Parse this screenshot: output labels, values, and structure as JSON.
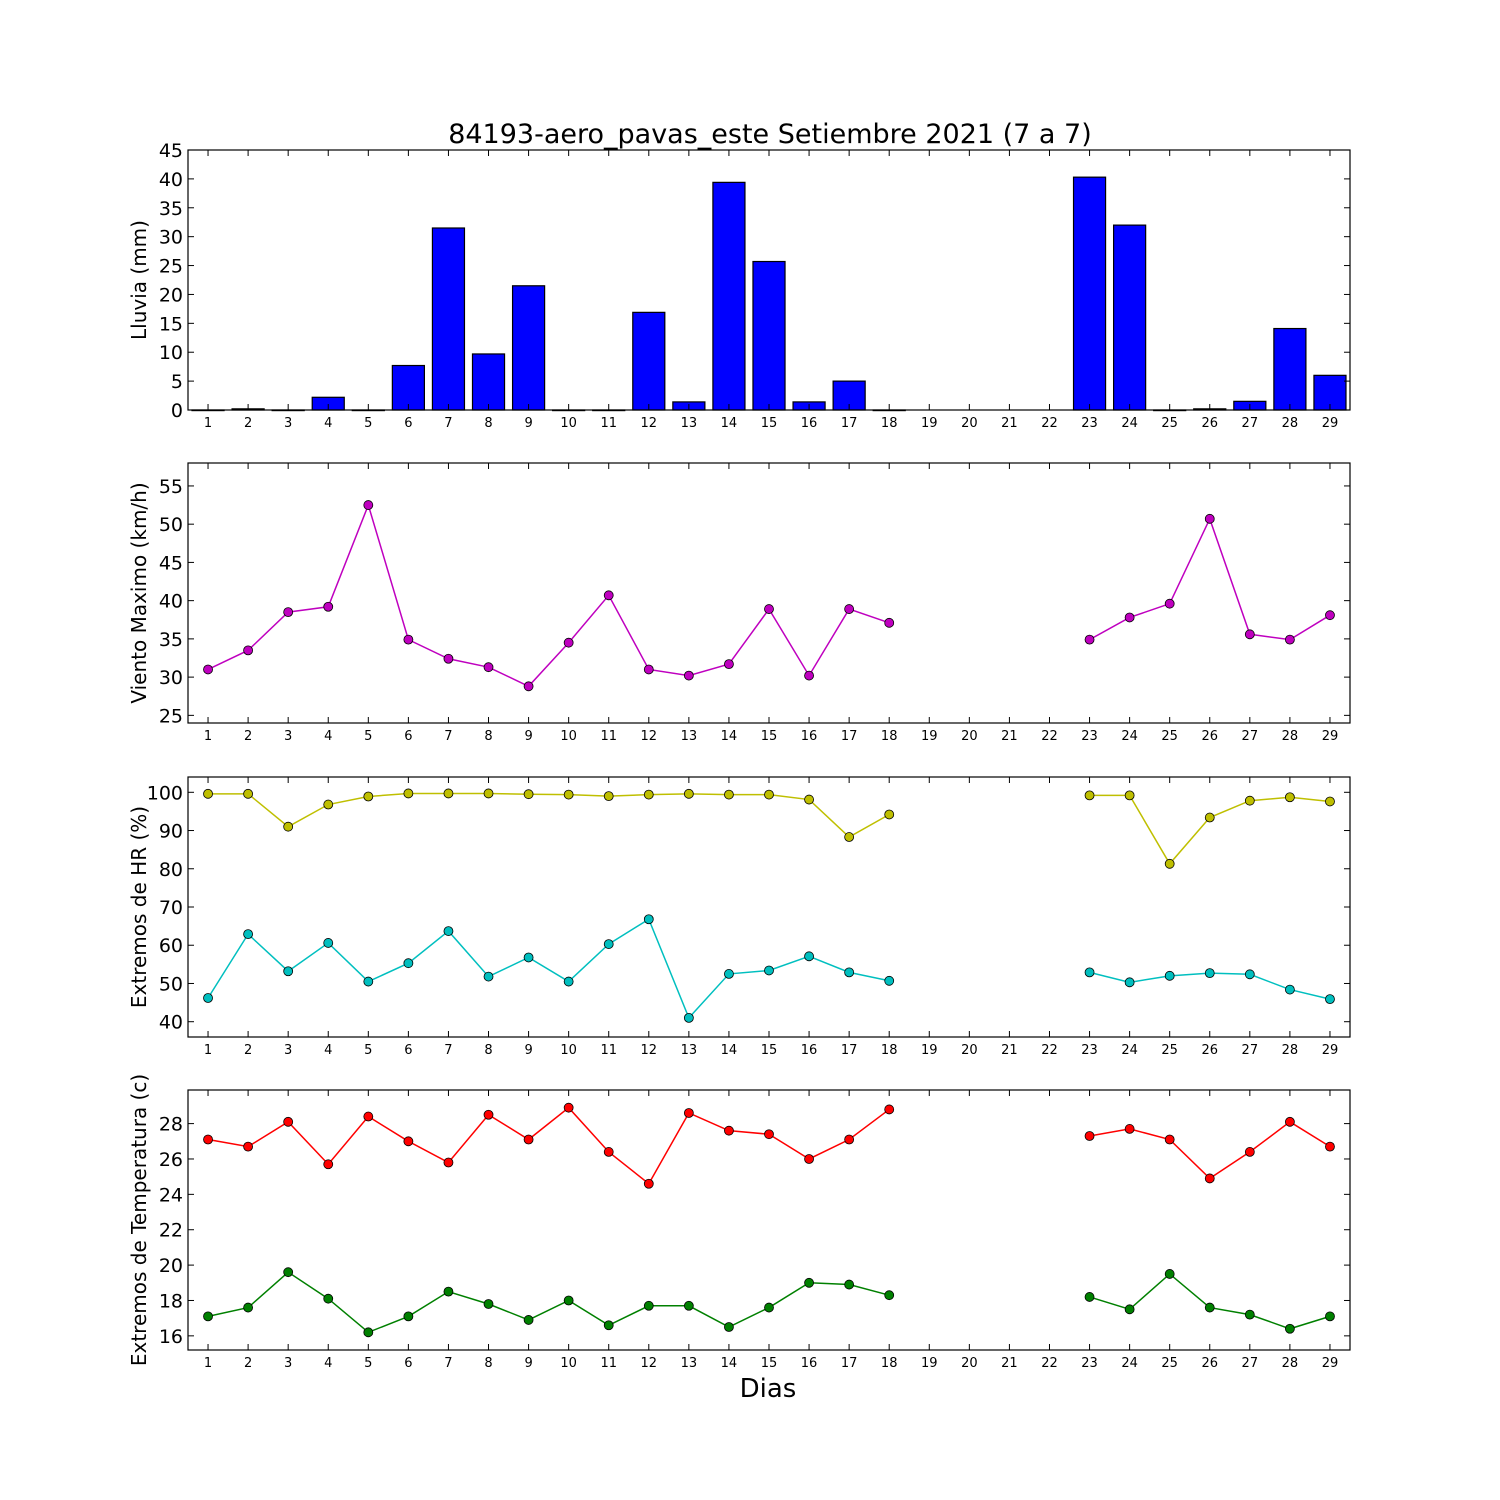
{
  "title": "84193-aero_pavas_este Setiembre 2021  (7 a 7)",
  "xlabel": "Dias",
  "chart_data": [
    {
      "type": "bar",
      "ylabel": "Lluvia (mm)",
      "ylim": [
        0,
        45
      ],
      "yticks": [
        0,
        5,
        10,
        15,
        20,
        25,
        30,
        35,
        40,
        45
      ],
      "categories": [
        "1",
        "2",
        "3",
        "4",
        "5",
        "6",
        "7",
        "8",
        "9",
        "10",
        "11",
        "12",
        "13",
        "14",
        "15",
        "16",
        "17",
        "18",
        "19",
        "20",
        "21",
        "22",
        "23",
        "24",
        "25",
        "26",
        "27",
        "28",
        "29"
      ],
      "color": "#0000ff",
      "values": [
        0,
        0.2,
        0,
        2.2,
        0,
        7.7,
        31.5,
        9.7,
        21.5,
        0,
        0,
        16.9,
        1.4,
        39.4,
        25.7,
        1.4,
        5.0,
        0,
        null,
        null,
        null,
        null,
        40.3,
        32.0,
        0,
        0.2,
        1.5,
        14.1,
        6.0
      ]
    },
    {
      "type": "line",
      "ylabel": "Viento Maximo (km/h)",
      "ylim": [
        24,
        58
      ],
      "yticks": [
        25,
        30,
        35,
        40,
        45,
        50,
        55
      ],
      "x": [
        1,
        2,
        3,
        4,
        5,
        6,
        7,
        8,
        9,
        10,
        11,
        12,
        13,
        14,
        15,
        16,
        17,
        18,
        19,
        20,
        21,
        22,
        23,
        24,
        25,
        26,
        27,
        28,
        29
      ],
      "series": [
        {
          "color": "#bf00bf",
          "values": [
            31.0,
            33.5,
            38.5,
            39.2,
            52.5,
            34.9,
            32.4,
            31.3,
            28.8,
            34.5,
            40.7,
            31.0,
            30.2,
            31.7,
            38.9,
            30.2,
            38.9,
            37.1,
            null,
            null,
            null,
            null,
            34.9,
            37.8,
            39.6,
            50.7,
            35.6,
            34.9,
            38.1
          ]
        }
      ]
    },
    {
      "type": "line",
      "ylabel": "Extremos de HR (%)",
      "ylim": [
        36,
        104
      ],
      "yticks": [
        40,
        50,
        60,
        70,
        80,
        90,
        100
      ],
      "x": [
        1,
        2,
        3,
        4,
        5,
        6,
        7,
        8,
        9,
        10,
        11,
        12,
        13,
        14,
        15,
        16,
        17,
        18,
        19,
        20,
        21,
        22,
        23,
        24,
        25,
        26,
        27,
        28,
        29
      ],
      "series": [
        {
          "color": "#bfbf00",
          "values": [
            99.6,
            99.6,
            91.0,
            96.8,
            98.9,
            99.7,
            99.7,
            99.7,
            99.5,
            99.4,
            99.0,
            99.4,
            99.6,
            99.4,
            99.4,
            98.1,
            88.3,
            94.2,
            null,
            null,
            null,
            null,
            99.2,
            99.2,
            81.3,
            93.4,
            97.8,
            98.7,
            97.6
          ]
        },
        {
          "color": "#00bfbf",
          "values": [
            46.2,
            62.9,
            53.2,
            60.6,
            50.5,
            55.3,
            63.7,
            51.8,
            56.8,
            50.5,
            60.3,
            66.8,
            41.0,
            52.5,
            53.4,
            57.1,
            52.9,
            50.7,
            null,
            null,
            null,
            null,
            52.9,
            50.3,
            52.0,
            52.7,
            52.4,
            48.4,
            45.9
          ]
        }
      ]
    },
    {
      "type": "line",
      "ylabel": "Extremos de Temperatura (c)",
      "ylim": [
        15.2,
        29.9
      ],
      "yticks": [
        16,
        18,
        20,
        22,
        24,
        26,
        28
      ],
      "x": [
        1,
        2,
        3,
        4,
        5,
        6,
        7,
        8,
        9,
        10,
        11,
        12,
        13,
        14,
        15,
        16,
        17,
        18,
        19,
        20,
        21,
        22,
        23,
        24,
        25,
        26,
        27,
        28,
        29
      ],
      "series": [
        {
          "color": "#ff0000",
          "values": [
            27.1,
            26.7,
            28.1,
            25.7,
            28.4,
            27.0,
            25.8,
            28.5,
            27.1,
            28.9,
            26.4,
            24.6,
            28.6,
            27.6,
            27.4,
            26.0,
            27.1,
            28.8,
            null,
            null,
            null,
            null,
            27.3,
            27.7,
            27.1,
            24.9,
            26.4,
            28.1,
            26.7
          ]
        },
        {
          "color": "#008000",
          "values": [
            17.1,
            17.6,
            19.6,
            18.1,
            16.2,
            17.1,
            18.5,
            17.8,
            16.9,
            18.0,
            16.6,
            17.7,
            17.7,
            16.5,
            17.6,
            19.0,
            18.9,
            18.3,
            null,
            null,
            null,
            null,
            18.2,
            17.5,
            19.5,
            17.6,
            17.2,
            16.4,
            17.1
          ]
        }
      ]
    }
  ]
}
